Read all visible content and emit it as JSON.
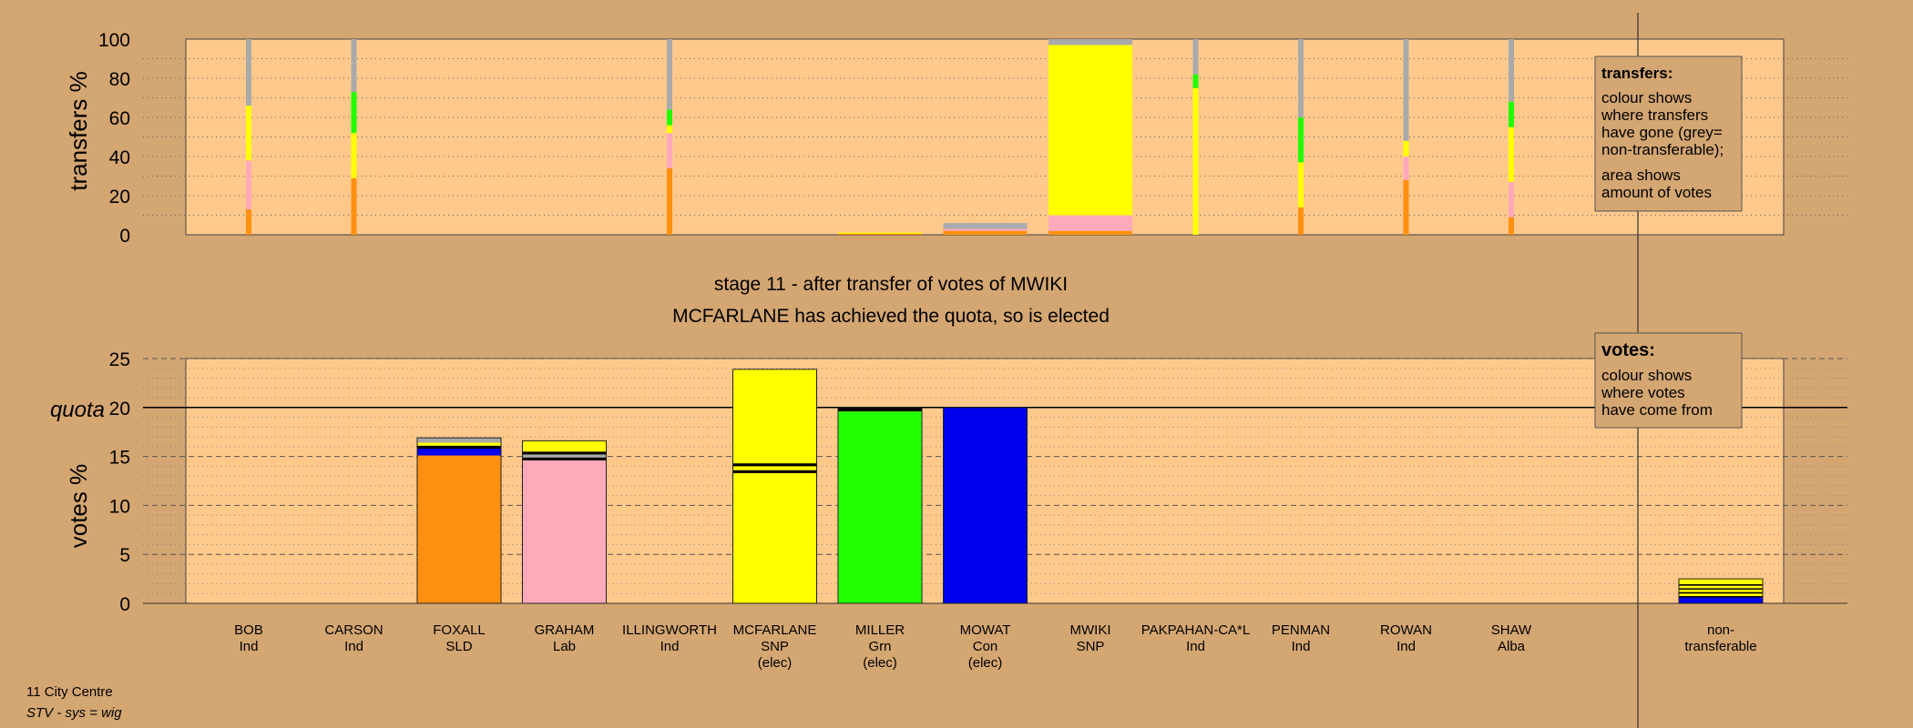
{
  "chart_data": {
    "type": "bar",
    "stage_title": "stage 11 - after transfer of votes of MWIKI",
    "stage_subtitle": "MCFARLANE has achieved the quota, so is elected",
    "footer_line1": "11 City Centre",
    "footer_line2": "STV - sys = wig",
    "colors": {
      "background": "#d4a672",
      "plot_bg": "#ffc98c",
      "orange": "#ff9010",
      "pink": "#ffaabb",
      "blue": "#0000ee",
      "yellow": "#ffff00",
      "green": "#22ff00",
      "grey": "#aaaaaa",
      "black": "#000000"
    },
    "candidates": [
      {
        "name": "BOB",
        "party": "Ind",
        "status": ""
      },
      {
        "name": "CARSON",
        "party": "Ind",
        "status": ""
      },
      {
        "name": "FOXALL",
        "party": "SLD",
        "status": ""
      },
      {
        "name": "GRAHAM",
        "party": "Lab",
        "status": ""
      },
      {
        "name": "ILLINGWORTH",
        "party": "Ind",
        "status": ""
      },
      {
        "name": "MCFARLANE",
        "party": "SNP",
        "status": "(elec)"
      },
      {
        "name": "MILLER",
        "party": "Grn",
        "status": "(elec)"
      },
      {
        "name": "MOWAT",
        "party": "Con",
        "status": "(elec)"
      },
      {
        "name": "MWIKI",
        "party": "SNP",
        "status": ""
      },
      {
        "name": "PAKPAHAN-CA*L",
        "party": "Ind",
        "status": ""
      },
      {
        "name": "PENMAN",
        "party": "Ind",
        "status": ""
      },
      {
        "name": "ROWAN",
        "party": "Ind",
        "status": ""
      },
      {
        "name": "SHAW",
        "party": "Alba",
        "status": ""
      }
    ],
    "nontransferable": {
      "line1": "non-",
      "line2": "transferable"
    },
    "transfers_chart": {
      "ylabel": "transfers %",
      "ylim": [
        0,
        100
      ],
      "yticks": [
        "0",
        "20",
        "40",
        "60",
        "80",
        "100"
      ],
      "thin_bars": [
        {
          "candidate": 0,
          "segments": [
            {
              "color": "orange",
              "from": 0,
              "to": 13
            },
            {
              "color": "pink",
              "from": 13,
              "to": 38
            },
            {
              "color": "yellow",
              "from": 38,
              "to": 66
            },
            {
              "color": "grey",
              "from": 66,
              "to": 100
            }
          ]
        },
        {
          "candidate": 1,
          "segments": [
            {
              "color": "orange",
              "from": 0,
              "to": 29
            },
            {
              "color": "yellow",
              "from": 29,
              "to": 52
            },
            {
              "color": "green",
              "from": 52,
              "to": 73
            },
            {
              "color": "grey",
              "from": 73,
              "to": 100
            }
          ]
        },
        {
          "candidate": 4,
          "segments": [
            {
              "color": "orange",
              "from": 0,
              "to": 34
            },
            {
              "color": "pink",
              "from": 34,
              "to": 52
            },
            {
              "color": "yellow",
              "from": 52,
              "to": 56
            },
            {
              "color": "green",
              "from": 56,
              "to": 64
            },
            {
              "color": "grey",
              "from": 64,
              "to": 100
            }
          ]
        },
        {
          "candidate": 9,
          "segments": [
            {
              "color": "yellow",
              "from": 0,
              "to": 75
            },
            {
              "color": "green",
              "from": 75,
              "to": 82
            },
            {
              "color": "grey",
              "from": 82,
              "to": 100
            }
          ]
        },
        {
          "candidate": 10,
          "segments": [
            {
              "color": "orange",
              "from": 0,
              "to": 14
            },
            {
              "color": "yellow",
              "from": 14,
              "to": 37
            },
            {
              "color": "green",
              "from": 37,
              "to": 60
            },
            {
              "color": "grey",
              "from": 60,
              "to": 100
            }
          ]
        },
        {
          "candidate": 11,
          "segments": [
            {
              "color": "orange",
              "from": 0,
              "to": 28
            },
            {
              "color": "pink",
              "from": 28,
              "to": 40
            },
            {
              "color": "yellow",
              "from": 40,
              "to": 48
            },
            {
              "color": "grey",
              "from": 48,
              "to": 100
            }
          ]
        },
        {
          "candidate": 12,
          "segments": [
            {
              "color": "orange",
              "from": 0,
              "to": 9
            },
            {
              "color": "pink",
              "from": 9,
              "to": 27
            },
            {
              "color": "yellow",
              "from": 27,
              "to": 55
            },
            {
              "color": "green",
              "from": 55,
              "to": 68
            },
            {
              "color": "grey",
              "from": 68,
              "to": 100
            }
          ]
        }
      ],
      "wide_bars": [
        {
          "from_candidate": 6,
          "to_candidate": 6,
          "segments": [
            {
              "color": "orange",
              "from": 0,
              "to": 0.6
            },
            {
              "color": "yellow",
              "from": 0.6,
              "to": 1.2
            }
          ]
        },
        {
          "from_candidate": 7,
          "to_candidate": 7,
          "segments": [
            {
              "color": "orange",
              "from": 0,
              "to": 2
            },
            {
              "color": "pink",
              "from": 2,
              "to": 3
            },
            {
              "color": "grey",
              "from": 3,
              "to": 6
            }
          ]
        },
        {
          "from_candidate": 8,
          "to_candidate": 8,
          "segments": [
            {
              "color": "orange",
              "from": 0,
              "to": 2
            },
            {
              "color": "pink",
              "from": 2,
              "to": 10
            },
            {
              "color": "yellow",
              "from": 10,
              "to": 97
            },
            {
              "color": "grey",
              "from": 97,
              "to": 100
            }
          ]
        }
      ]
    },
    "votes_chart": {
      "ylabel": "votes %",
      "quota_label": "quota",
      "quota": 20,
      "ylim": [
        0,
        25
      ],
      "yticks": [
        "0",
        "5",
        "10",
        "15",
        "20",
        "25"
      ],
      "bars": [
        {
          "candidate": 2,
          "segments": [
            {
              "color": "orange",
              "from": 0,
              "to": 15.1
            },
            {
              "color": "blue",
              "from": 15.1,
              "to": 15.8
            },
            {
              "color": "black",
              "from": 15.8,
              "to": 16.1
            },
            {
              "color": "yellow",
              "from": 16.1,
              "to": 16.4
            },
            {
              "color": "grey",
              "from": 16.4,
              "to": 16.9
            }
          ]
        },
        {
          "candidate": 3,
          "segments": [
            {
              "color": "pink",
              "from": 0,
              "to": 14.6
            },
            {
              "color": "black",
              "from": 14.6,
              "to": 14.9
            },
            {
              "color": "grey",
              "from": 14.9,
              "to": 15.2
            },
            {
              "color": "black",
              "from": 15.2,
              "to": 15.5
            },
            {
              "color": "yellow",
              "from": 15.5,
              "to": 16.6
            }
          ]
        },
        {
          "candidate": 5,
          "segments": [
            {
              "color": "yellow",
              "from": 0,
              "to": 13.3
            },
            {
              "color": "black",
              "from": 13.3,
              "to": 13.6
            },
            {
              "color": "yellow",
              "from": 13.6,
              "to": 14.0
            },
            {
              "color": "black",
              "from": 14.0,
              "to": 14.3
            },
            {
              "color": "yellow",
              "from": 14.3,
              "to": 23.9
            }
          ]
        },
        {
          "candidate": 6,
          "segments": [
            {
              "color": "green",
              "from": 0,
              "to": 19.6
            },
            {
              "color": "black",
              "from": 19.6,
              "to": 20.0
            }
          ]
        },
        {
          "candidate": 7,
          "segments": [
            {
              "color": "blue",
              "from": 0,
              "to": 20.0
            }
          ]
        },
        {
          "candidate": "nontransferable",
          "segments": [
            {
              "color": "blue",
              "from": 0,
              "to": 0.6
            },
            {
              "color": "black",
              "from": 0.6,
              "to": 0.75
            },
            {
              "color": "yellow",
              "from": 0.75,
              "to": 1.0
            },
            {
              "color": "black",
              "from": 1.0,
              "to": 1.15
            },
            {
              "color": "yellow",
              "from": 1.15,
              "to": 1.4
            },
            {
              "color": "black",
              "from": 1.4,
              "to": 1.55
            },
            {
              "color": "yellow",
              "from": 1.55,
              "to": 1.8
            },
            {
              "color": "black",
              "from": 1.8,
              "to": 1.95
            },
            {
              "color": "yellow",
              "from": 1.95,
              "to": 2.5
            }
          ]
        }
      ]
    },
    "legend_transfers": {
      "title": "transfers:",
      "lines": [
        "colour shows",
        "where transfers",
        "have gone (grey=",
        "non-transferable);"
      ],
      "lines2": [
        "area shows",
        "amount of votes"
      ]
    },
    "legend_votes": {
      "title": "votes:",
      "lines": [
        "colour shows",
        "where votes",
        "have come from"
      ]
    }
  }
}
